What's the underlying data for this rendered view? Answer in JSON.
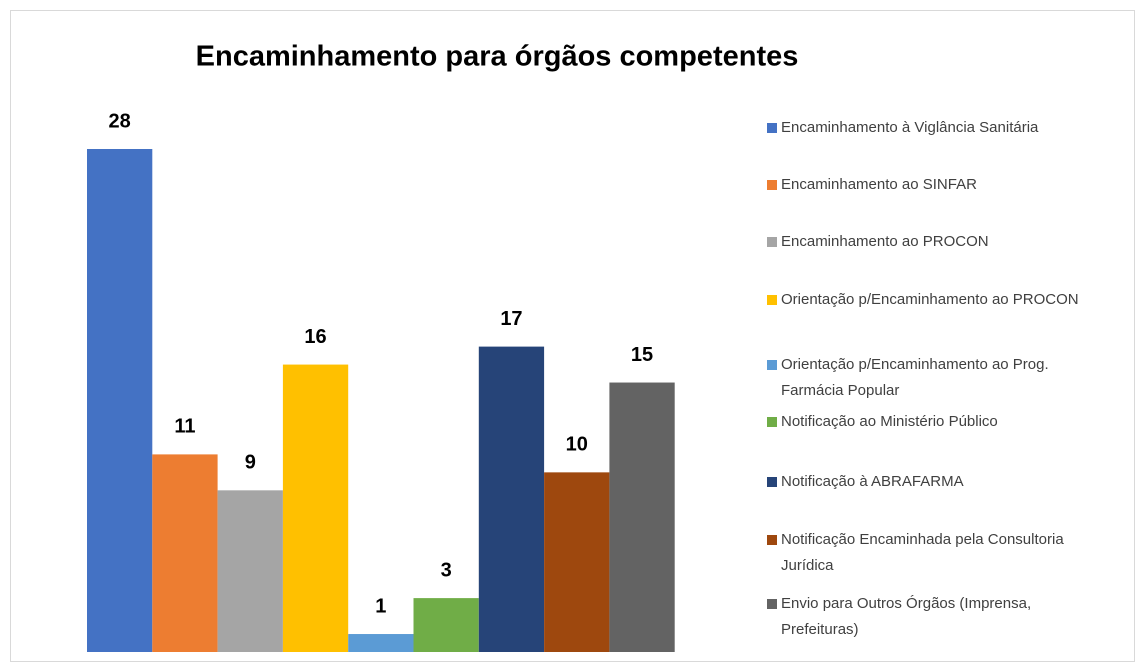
{
  "chart_data": {
    "type": "bar",
    "title": "Encaminhamento para órgãos competentes",
    "categories": [
      "Encaminhamento à Viglância Sanitária",
      "Encaminhamento ao SINFAR",
      "Encaminhamento ao PROCON",
      "Orientação p/Encaminhamento ao PROCON",
      "Orientação p/Encaminhamento ao Prog. Farmácia Popular",
      "Notificação ao Ministério Público",
      "Notificação à ABRAFARMA",
      "Notificação Encaminhada pela Consultoria Jurídica",
      "Envio para Outros Órgãos (Imprensa, Prefeituras)"
    ],
    "values": [
      28,
      11,
      9,
      16,
      1,
      3,
      17,
      10,
      15
    ],
    "colors": [
      "#4472c4",
      "#ed7d31",
      "#a5a5a5",
      "#ffc000",
      "#5b9bd5",
      "#70ad47",
      "#264478",
      "#9e480e",
      "#636363"
    ],
    "legend": "right"
  }
}
